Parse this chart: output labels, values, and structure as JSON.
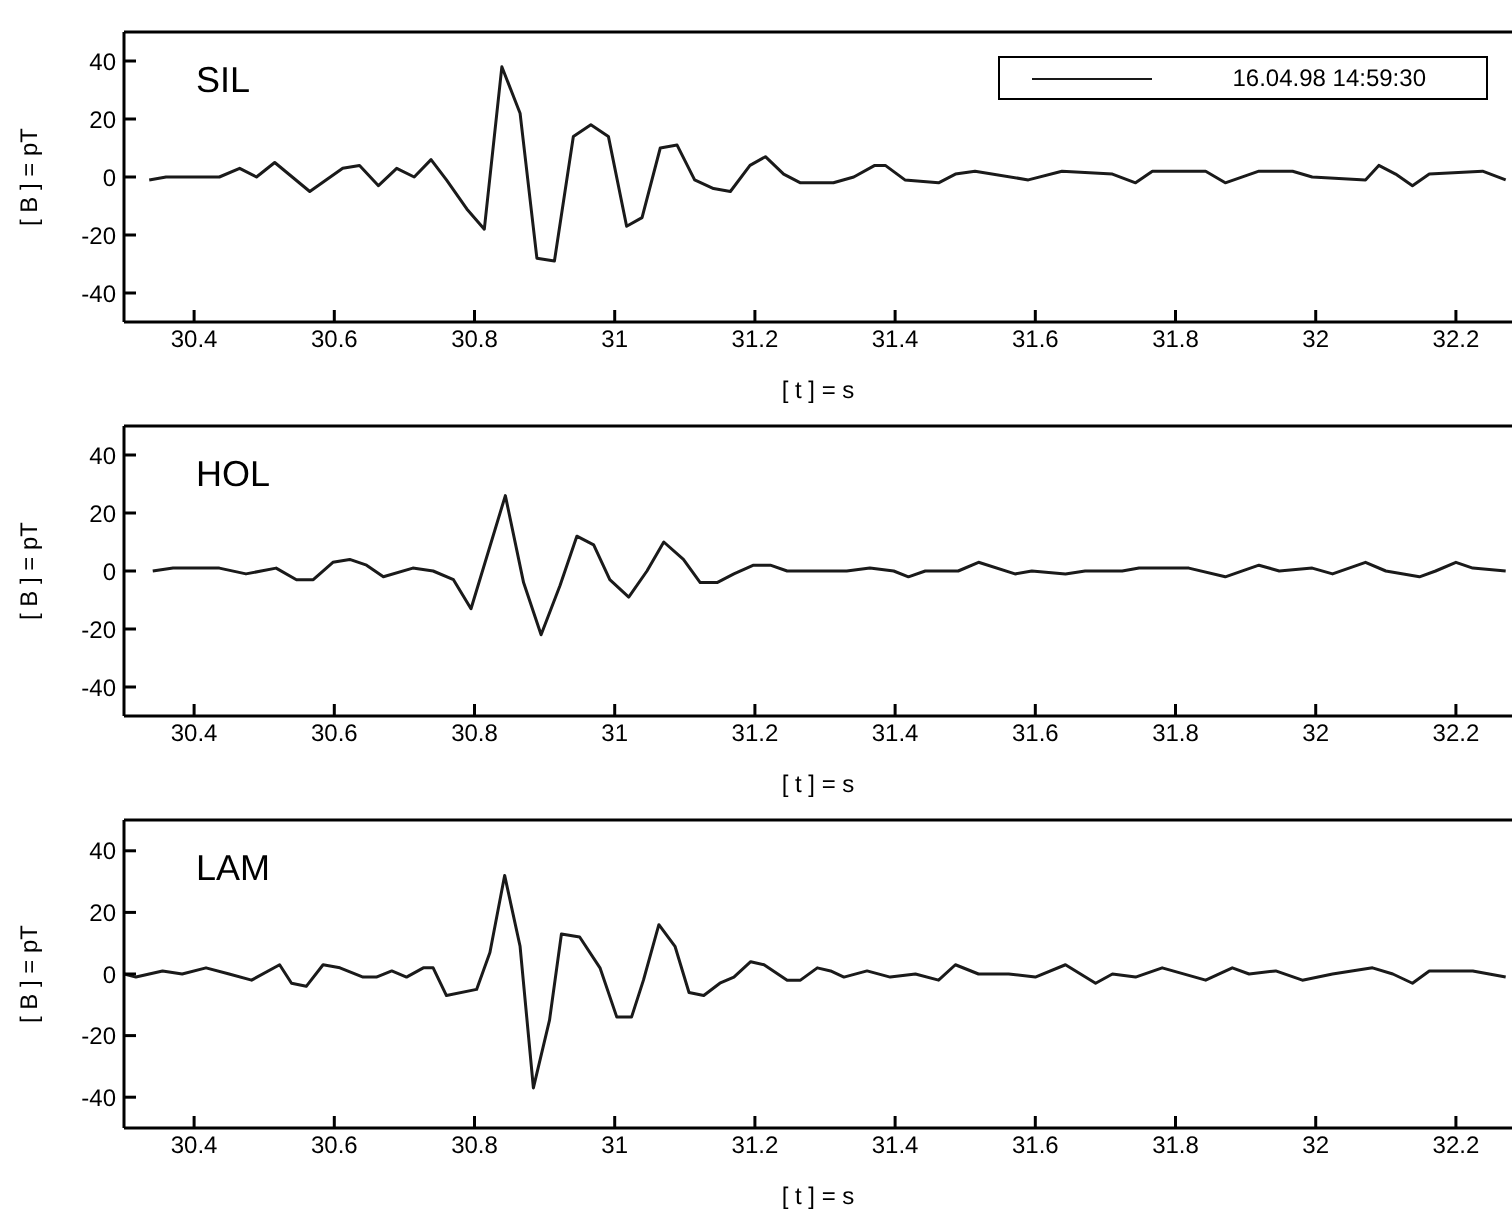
{
  "chart_data": [
    {
      "type": "line",
      "title": "SIL",
      "xlabel": "[ t ] = s",
      "ylabel": "[ B ] = pT",
      "legend": "top right",
      "xlim": [
        30.3,
        32.28
      ],
      "xticks": [
        30.4,
        30.6,
        30.8,
        31,
        31.2,
        31.4,
        31.6,
        31.8,
        32,
        32.2
      ],
      "ylim": [
        -50,
        50
      ],
      "yticks": [
        -40,
        -20,
        0,
        20,
        40
      ],
      "x": [
        30.336,
        30.36,
        30.39,
        30.436,
        30.465,
        30.489,
        30.515,
        30.565,
        30.612,
        30.636,
        30.663,
        30.689,
        30.714,
        30.738,
        30.76,
        30.789,
        30.814,
        30.839,
        30.865,
        30.889,
        30.914,
        30.941,
        30.966,
        30.991,
        31.017,
        31.039,
        31.065,
        31.089,
        31.114,
        31.141,
        31.165,
        31.193,
        31.215,
        31.241,
        31.265,
        31.312,
        31.341,
        31.371,
        31.386,
        31.414,
        31.462,
        31.486,
        31.514,
        31.59,
        31.638,
        31.71,
        31.743,
        31.767,
        31.843,
        31.871,
        31.919,
        31.967,
        31.995,
        32.071,
        32.09,
        32.114,
        32.138,
        32.162,
        32.238,
        32.271
      ],
      "series": [
        {
          "name": "16.04.98 14:59:30",
          "color": "#1a1a1a",
          "values": [
            -1,
            0,
            0,
            0,
            3,
            0,
            5,
            -5,
            3,
            4,
            -3,
            3,
            0,
            6,
            -1,
            -11,
            -18,
            38,
            22,
            -28,
            -29,
            14,
            18,
            14,
            -17,
            -14,
            10,
            11,
            -1,
            -4,
            -5,
            4,
            7,
            1,
            -2,
            -2,
            0,
            4,
            4,
            -1,
            -2,
            1,
            2,
            -1,
            2,
            1,
            -2,
            2,
            2,
            -2,
            2,
            2,
            0,
            -1,
            4,
            1,
            -3,
            1,
            2,
            -1
          ]
        }
      ]
    },
    {
      "type": "line",
      "title": "HOL",
      "xlabel": "[ t ] = s",
      "ylabel": "[ B ] = pT",
      "xlim": [
        30.3,
        32.28
      ],
      "xticks": [
        30.4,
        30.6,
        30.8,
        31,
        31.2,
        31.4,
        31.6,
        31.8,
        32,
        32.2
      ],
      "ylim": [
        -50,
        50
      ],
      "yticks": [
        -40,
        -20,
        0,
        20,
        40
      ],
      "x": [
        30.341,
        30.37,
        30.436,
        30.474,
        30.517,
        30.546,
        30.57,
        30.598,
        30.622,
        30.646,
        30.67,
        30.712,
        30.741,
        30.77,
        30.795,
        30.844,
        30.87,
        30.895,
        30.922,
        30.946,
        30.97,
        30.993,
        31.02,
        31.046,
        31.07,
        31.098,
        31.122,
        31.146,
        31.17,
        31.198,
        31.222,
        31.246,
        31.265,
        31.293,
        31.331,
        31.364,
        31.398,
        31.419,
        31.443,
        31.49,
        31.519,
        31.571,
        31.595,
        31.643,
        31.671,
        31.724,
        31.748,
        31.819,
        31.871,
        31.919,
        31.948,
        31.995,
        32.024,
        32.071,
        32.1,
        32.148,
        32.171,
        32.2,
        32.224,
        32.271
      ],
      "series": [
        {
          "color": "#1a1a1a",
          "values": [
            0,
            1,
            1,
            -1,
            1,
            -3,
            -3,
            3,
            4,
            2,
            -2,
            1,
            0,
            -3,
            -13,
            26,
            -4,
            -22,
            -5,
            12,
            9,
            -3,
            -9,
            0,
            10,
            4,
            -4,
            -4,
            -1,
            2,
            2,
            0,
            0,
            0,
            0,
            1,
            0,
            -2,
            0,
            0,
            3,
            -1,
            0,
            -1,
            0,
            0,
            1,
            1,
            -2,
            2,
            0,
            1,
            -1,
            3,
            0,
            -2,
            0,
            3,
            1,
            0
          ]
        }
      ]
    },
    {
      "type": "line",
      "title": "LAM",
      "xlabel": "[ t ] = s",
      "ylabel": "[ B ] = pT",
      "xlim": [
        30.3,
        32.28
      ],
      "xticks": [
        30.4,
        30.6,
        30.8,
        31,
        31.2,
        31.4,
        31.6,
        31.8,
        32,
        32.2
      ],
      "ylim": [
        -50,
        50
      ],
      "yticks": [
        -40,
        -20,
        0,
        20,
        40
      ],
      "x": [
        30.3,
        30.317,
        30.355,
        30.383,
        30.417,
        30.45,
        30.482,
        30.522,
        30.539,
        30.56,
        30.584,
        30.608,
        30.641,
        30.66,
        30.682,
        30.703,
        30.727,
        30.741,
        30.76,
        30.803,
        30.822,
        30.843,
        30.865,
        30.884,
        30.907,
        30.924,
        30.95,
        30.979,
        31.003,
        31.024,
        31.041,
        31.063,
        31.086,
        31.106,
        31.127,
        31.15,
        31.17,
        31.194,
        31.213,
        31.246,
        31.265,
        31.289,
        31.308,
        31.327,
        31.36,
        31.393,
        31.429,
        31.462,
        31.486,
        31.519,
        31.562,
        31.6,
        31.643,
        31.686,
        31.71,
        31.743,
        31.781,
        31.843,
        31.881,
        31.905,
        31.943,
        31.981,
        32.024,
        32.081,
        32.11,
        32.138,
        32.162,
        32.224,
        32.271
      ],
      "series": [
        {
          "color": "#1a1a1a",
          "values": [
            0,
            -1,
            1,
            0,
            2,
            0,
            -2,
            3,
            -3,
            -4,
            3,
            2,
            -1,
            -1,
            1,
            -1,
            2,
            2,
            -7,
            -5,
            7,
            32,
            9,
            -37,
            -15,
            13,
            12,
            2,
            -14,
            -14,
            -2,
            16,
            9,
            -6,
            -7,
            -3,
            -1,
            4,
            3,
            -2,
            -2,
            2,
            1,
            -1,
            1,
            -1,
            0,
            -2,
            3,
            0,
            0,
            -1,
            3,
            -3,
            0,
            -1,
            2,
            -2,
            2,
            0,
            1,
            -2,
            0,
            2,
            0,
            -3,
            1,
            1,
            -1
          ]
        }
      ]
    }
  ]
}
